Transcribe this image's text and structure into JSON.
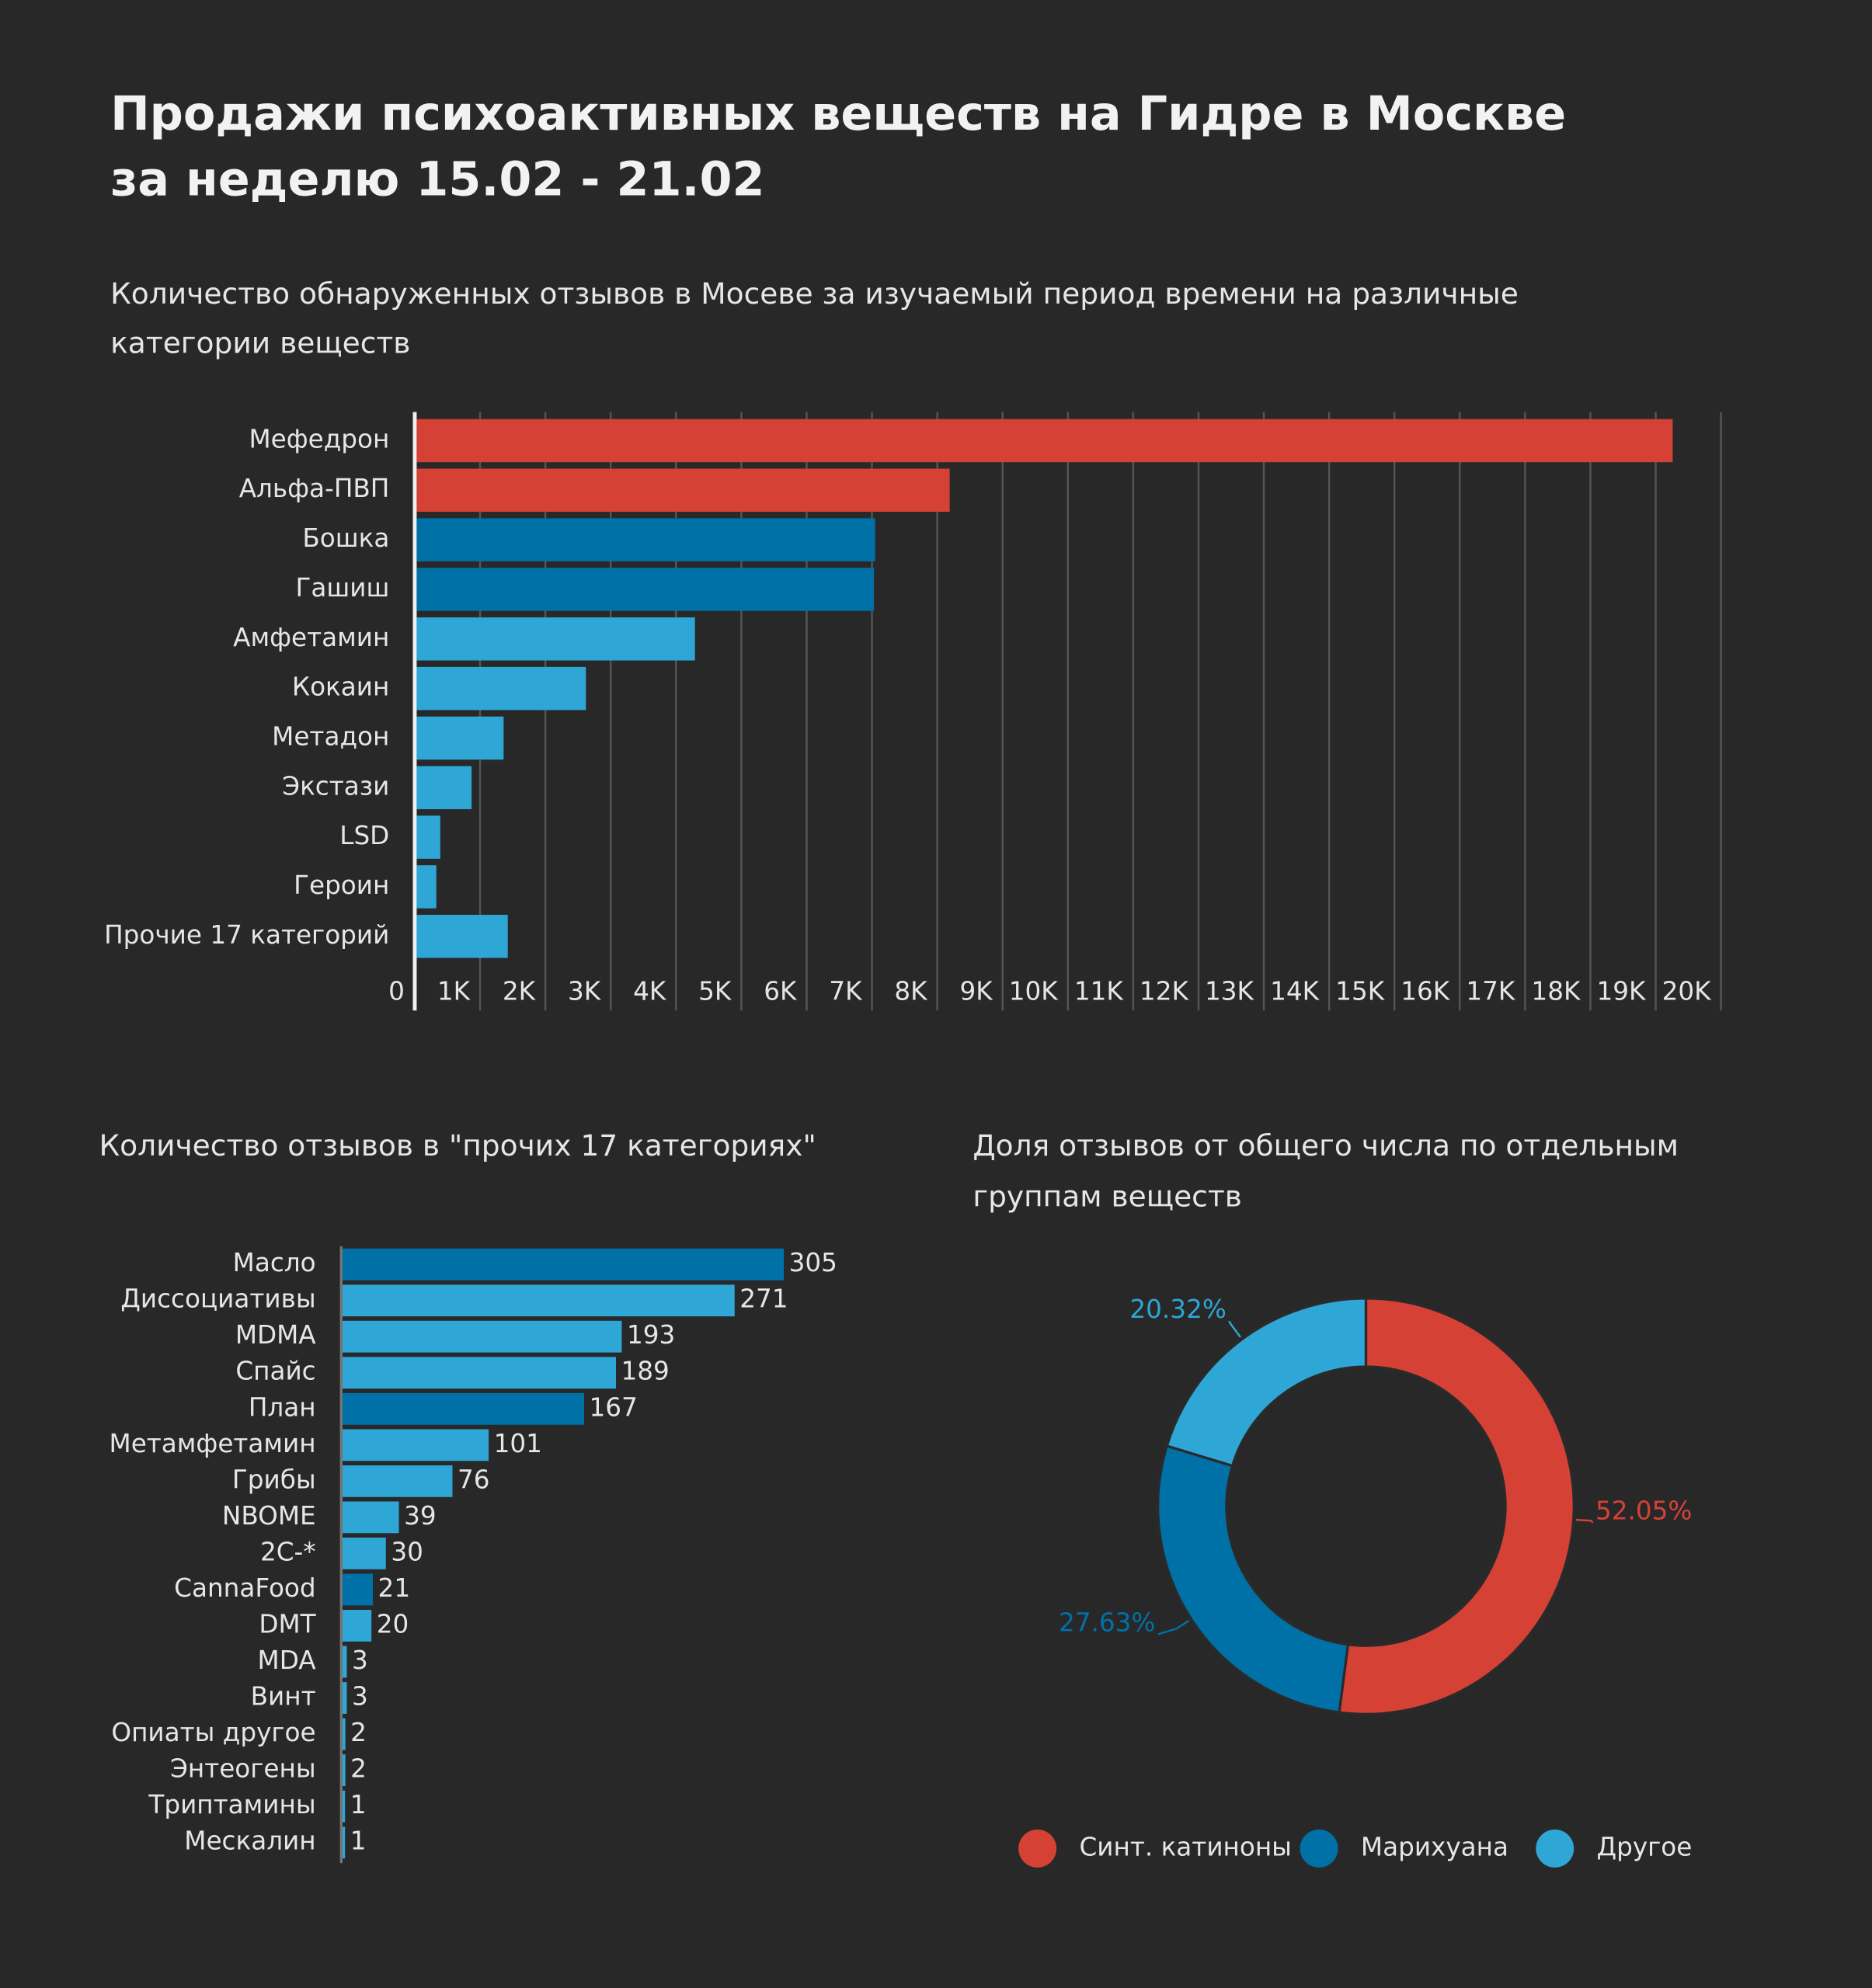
{
  "title": [
    "Продажи психоактивных веществ на Гидре в Москве",
    "за неделю 15.02 - 21.02"
  ],
  "chart_data": [
    {
      "type": "hbar",
      "title": [
        "Количество обнаруженных отзывов в Мосеве за изучаемый период времени на различные",
        "категории веществ"
      ],
      "categories": [
        "Мефедрон",
        "Альфа-ПВП",
        "Бошка",
        "Гашиш",
        "Амфетамин",
        "Кокаин",
        "Метадон",
        "Экстази",
        "LSD",
        "Героин",
        "Прочие 17 категорий"
      ],
      "values": [
        19260,
        8190,
        7050,
        7030,
        4290,
        2620,
        1360,
        870,
        390,
        330,
        1424
      ],
      "colors": [
        "#d64136",
        "#d64136",
        "#0071a6",
        "#0071a6",
        "#2ea6d6",
        "#2ea6d6",
        "#2ea6d6",
        "#2ea6d6",
        "#2ea6d6",
        "#2ea6d6",
        "#2ea6d6"
      ],
      "xlim": [
        0,
        20000
      ],
      "xticks": [
        0,
        {
          "value": 1000,
          "label": "1K"
        },
        {
          "value": 2000,
          "label": "2K"
        },
        {
          "value": 3000,
          "label": "3K"
        },
        {
          "value": 4000,
          "label": "4K"
        },
        {
          "value": 5000,
          "label": "5K"
        },
        {
          "value": 6000,
          "label": "6K"
        },
        {
          "value": 7000,
          "label": "7K"
        },
        {
          "value": 8000,
          "label": "8K"
        },
        {
          "value": 9000,
          "label": "9K"
        },
        {
          "value": 10000,
          "label": "10K"
        },
        {
          "value": 11000,
          "label": "11K"
        },
        {
          "value": 12000,
          "label": "12K"
        },
        {
          "value": 13000,
          "label": "13K"
        },
        {
          "value": 14000,
          "label": "14K"
        },
        {
          "value": 15000,
          "label": "15K"
        },
        {
          "value": 16000,
          "label": "16K"
        },
        {
          "value": 17000,
          "label": "17K"
        },
        {
          "value": 18000,
          "label": "18K"
        },
        {
          "value": 19000,
          "label": "19K"
        },
        {
          "value": 20000,
          "label": "20K"
        }
      ],
      "grid": true
    },
    {
      "type": "hbar-labeled",
      "title": [
        "Количество отзывов в \"прочих 17 категориях\""
      ],
      "categories": [
        "Масло",
        "Диссоциативы",
        "MDMA",
        "Спайс",
        "План",
        "Метамфетамин",
        "Грибы",
        "NBOME",
        "2C-*",
        "CannaFood",
        "DMT",
        "MDA",
        "Винт",
        "Опиаты другое",
        "Энтеогены",
        "Триптамины",
        "Мескалин"
      ],
      "values": [
        305,
        271,
        193,
        189,
        167,
        101,
        76,
        39,
        30,
        21,
        20,
        3,
        3,
        2,
        2,
        1,
        1
      ],
      "colors": [
        "#0071a6",
        "#2ea6d6",
        "#2ea6d6",
        "#2ea6d6",
        "#0071a6",
        "#2ea6d6",
        "#2ea6d6",
        "#2ea6d6",
        "#2ea6d6",
        "#0071a6",
        "#2ea6d6",
        "#2ea6d6",
        "#2ea6d6",
        "#2ea6d6",
        "#2ea6d6",
        "#2ea6d6",
        "#2ea6d6"
      ]
    },
    {
      "type": "donut",
      "title": [
        "Доля отзывов от общего числа по отдельным",
        "группам веществ"
      ],
      "categories": [
        "Синт. катиноны",
        "Марихуана",
        "Другое"
      ],
      "values": [
        52.05,
        27.63,
        20.32
      ],
      "value_labels": [
        "52.05%",
        "27.63%",
        "20.32%"
      ],
      "colors": [
        "#d64136",
        "#0071a6",
        "#2ea6d6"
      ],
      "legend": "bottom"
    }
  ]
}
